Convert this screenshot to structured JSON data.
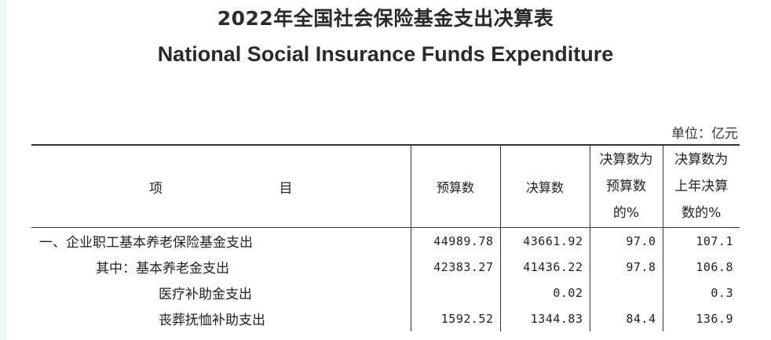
{
  "title_cn": "2022年全国社会保险基金支出决算表",
  "title_en": "National Social Insurance Funds Expenditure",
  "unit": "单位：亿元",
  "header": {
    "item_chars": [
      "项",
      "目"
    ],
    "budget": "预算数",
    "final": "决算数",
    "pct_of_budget": [
      "决算数为",
      "预算数",
      "的%"
    ],
    "pct_of_prev": [
      "决算数为",
      "上年决算",
      "数的%"
    ]
  },
  "rows": [
    {
      "label": "一、企业职工基本养老保险基金支出",
      "budget": "44989.78",
      "final": "43661.92",
      "pct_budget": "97.0",
      "pct_prev": "107.1"
    },
    {
      "label": "其中：基本养老金支出",
      "budget": "42383.27",
      "final": "41436.22",
      "pct_budget": "97.8",
      "pct_prev": "106.8"
    },
    {
      "label": "医疗补助金支出",
      "budget": "",
      "final": "0.02",
      "pct_budget": "",
      "pct_prev": "0.3"
    },
    {
      "label": "丧葬抚恤补助支出",
      "budget": "1592.52",
      "final": "1344.83",
      "pct_budget": "84.4",
      "pct_prev": "136.9"
    }
  ]
}
